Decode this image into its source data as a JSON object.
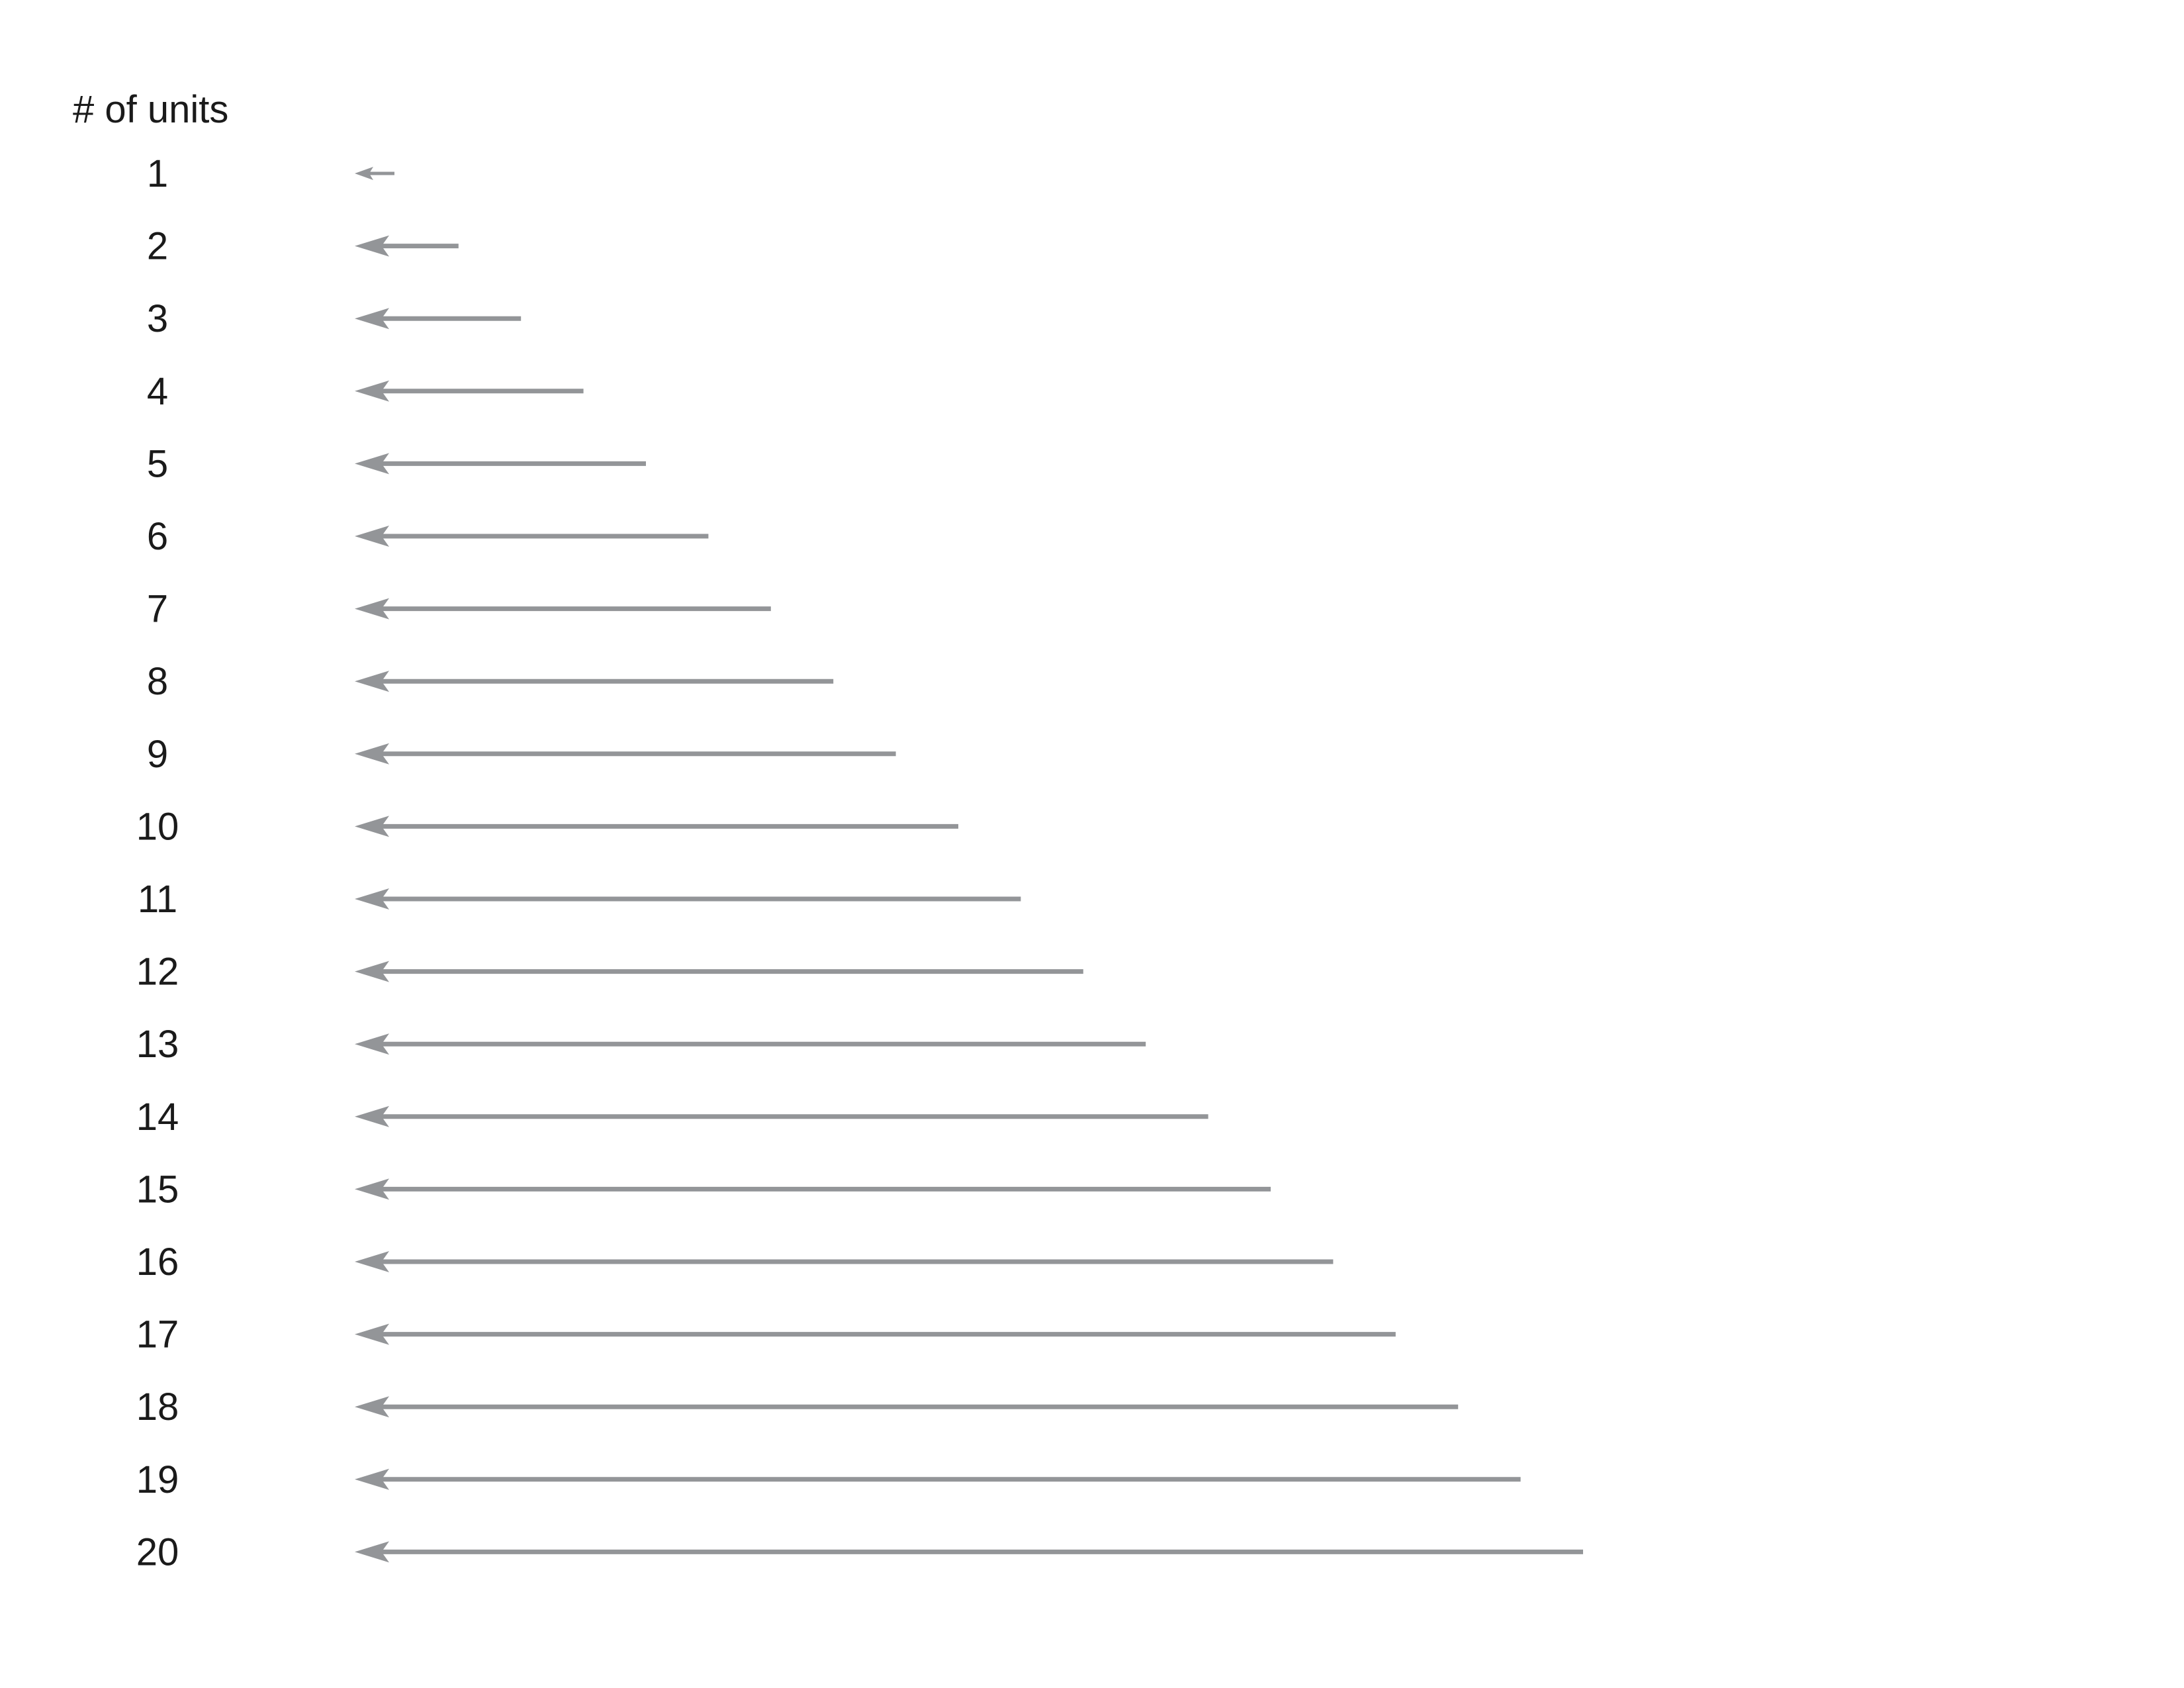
{
  "header": {
    "title": "# of units"
  },
  "arrow_color": "#939598",
  "label_color": "#1a1a1a",
  "rows": [
    {
      "label": "1",
      "units": 1
    },
    {
      "label": "2",
      "units": 2
    },
    {
      "label": "3",
      "units": 3
    },
    {
      "label": "4",
      "units": 4
    },
    {
      "label": "5",
      "units": 5
    },
    {
      "label": "6",
      "units": 6
    },
    {
      "label": "7",
      "units": 7
    },
    {
      "label": "8",
      "units": 8
    },
    {
      "label": "9",
      "units": 9
    },
    {
      "label": "10",
      "units": 10
    },
    {
      "label": "11",
      "units": 11
    },
    {
      "label": "12",
      "units": 12
    },
    {
      "label": "13",
      "units": 13
    },
    {
      "label": "14",
      "units": 14
    },
    {
      "label": "15",
      "units": 15
    },
    {
      "label": "16",
      "units": 16
    },
    {
      "label": "17",
      "units": 17
    },
    {
      "label": "18",
      "units": 18
    },
    {
      "label": "19",
      "units": 19
    },
    {
      "label": "20",
      "units": 20
    }
  ]
}
